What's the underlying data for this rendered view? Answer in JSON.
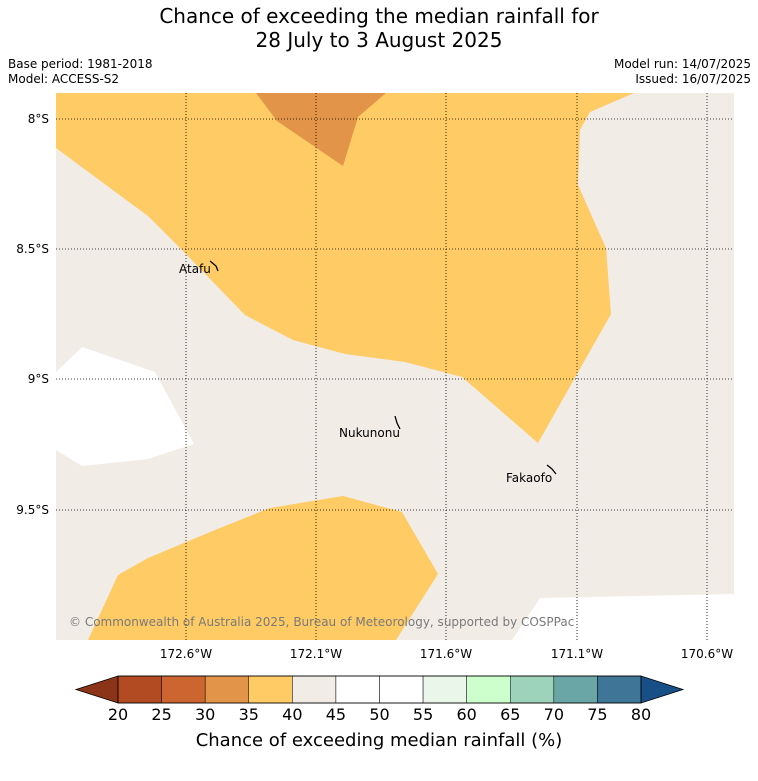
{
  "header": {
    "title_line1": "Chance of exceeding the median rainfall for",
    "title_line2": "28 July to 3 August 2025",
    "base_period": "Base period: 1981-2018",
    "model": "Model: ACCESS-S2",
    "model_run": "Model run: 14/07/2025",
    "issued": "Issued: 16/07/2025"
  },
  "map": {
    "lat_labels": [
      "8°S",
      "8.5°S",
      "9°S",
      "9.5°S"
    ],
    "lon_labels": [
      "172.6°W",
      "172.1°W",
      "171.6°W",
      "171.1°W",
      "170.6°W"
    ],
    "places": [
      "Atafu",
      "Nukunonu",
      "Fakaofo"
    ],
    "copyright": "© Commonwealth of Australia 2025, Bureau of Meteorology, supported by COSPPac",
    "colors": {
      "band_35_40": "#fecb65",
      "band_30_35": "#e29448",
      "band_40_45": "#f1ece6",
      "band_45_55": "#ffffff"
    }
  },
  "colorbar": {
    "label": "Chance of exceeding median rainfall (%)",
    "ticks": [
      "20",
      "25",
      "30",
      "35",
      "40",
      "45",
      "50",
      "55",
      "60",
      "65",
      "70",
      "75",
      "80"
    ],
    "colors": [
      "#b24b22",
      "#cd6530",
      "#e29448",
      "#fecb65",
      "#f1ece6",
      "#ffffff",
      "#ffffff",
      "#eaf6ea",
      "#ccffcc",
      "#9ed3bb",
      "#6ba6a6",
      "#3f7697"
    ],
    "low_extend_color": "#8b3418",
    "high_extend_color": "#174f86"
  }
}
